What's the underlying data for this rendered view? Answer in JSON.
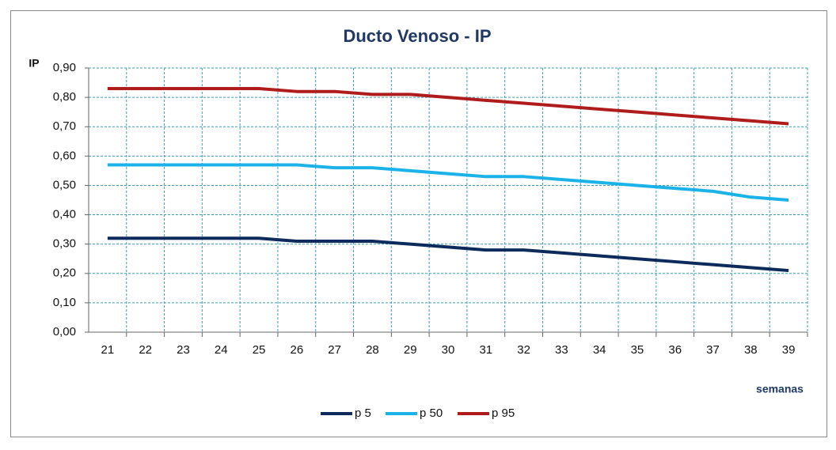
{
  "chart_data": {
    "type": "line",
    "title": "Ducto Venoso - IP",
    "y_label": "IP",
    "x_label": "semanas",
    "categories": [
      "21",
      "22",
      "23",
      "24",
      "25",
      "26",
      "27",
      "28",
      "29",
      "30",
      "31",
      "32",
      "33",
      "34",
      "35",
      "36",
      "37",
      "38",
      "39"
    ],
    "series": [
      {
        "name": "p 5",
        "color": "#0d2a5c",
        "values": [
          0.32,
          0.32,
          0.32,
          0.32,
          0.32,
          0.31,
          0.31,
          0.31,
          0.3,
          0.29,
          0.28,
          0.28,
          0.27,
          0.26,
          0.25,
          0.24,
          0.23,
          0.22,
          0.21
        ]
      },
      {
        "name": "p 50",
        "color": "#1ab2e8",
        "values": [
          0.57,
          0.57,
          0.57,
          0.57,
          0.57,
          0.57,
          0.56,
          0.56,
          0.55,
          0.54,
          0.53,
          0.53,
          0.52,
          0.51,
          0.5,
          0.49,
          0.48,
          0.46,
          0.45
        ]
      },
      {
        "name": "p 95",
        "color": "#b01c1c",
        "values": [
          0.83,
          0.83,
          0.83,
          0.83,
          0.83,
          0.82,
          0.82,
          0.81,
          0.81,
          0.8,
          0.79,
          0.78,
          0.77,
          0.76,
          0.75,
          0.74,
          0.73,
          0.72,
          0.71
        ]
      }
    ],
    "ylim": [
      0,
      0.9
    ],
    "yticks": [
      {
        "value": 0,
        "label": "0,00"
      },
      {
        "value": 0.1,
        "label": "0,10"
      },
      {
        "value": 0.2,
        "label": "0,20"
      },
      {
        "value": 0.3,
        "label": "0,30"
      },
      {
        "value": 0.4,
        "label": "0,40"
      },
      {
        "value": 0.5,
        "label": "0,50"
      },
      {
        "value": 0.6,
        "label": "0,60"
      },
      {
        "value": 0.7,
        "label": "0,70"
      },
      {
        "value": 0.8,
        "label": "0,80"
      },
      {
        "value": 0.9,
        "label": "0,90"
      }
    ],
    "grid": true
  }
}
